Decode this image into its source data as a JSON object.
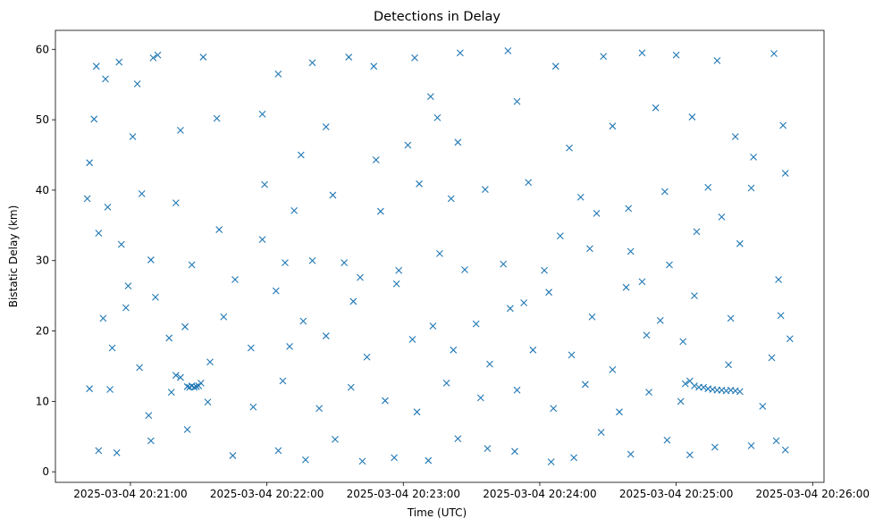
{
  "chart_data": {
    "type": "scatter",
    "title": "Detections in Delay",
    "xlabel": "Time (UTC)",
    "ylabel": "Bistatic Delay (km)",
    "marker": "x",
    "color": "#1f77b4",
    "grid": false,
    "xlim": [
      "2025-03-04 20:20:27",
      "2025-03-04 20:26:05"
    ],
    "ylim": [
      -1.5,
      62.7
    ],
    "xticks": [
      "2025-03-04 20:21:00",
      "2025-03-04 20:22:00",
      "2025-03-04 20:23:00",
      "2025-03-04 20:24:00",
      "2025-03-04 20:25:00",
      "2025-03-04 20:26:00"
    ],
    "yticks": [
      0,
      10,
      20,
      30,
      40,
      50,
      60
    ],
    "series": [
      {
        "points": [
          [
            "2025-03-04 20:20:42",
            43.9
          ],
          [
            "2025-03-04 20:20:45",
            57.6
          ],
          [
            "2025-03-04 20:20:49",
            55.8
          ],
          [
            "2025-03-04 20:20:55",
            58.2
          ],
          [
            "2025-03-04 20:21:03",
            55.1
          ],
          [
            "2025-03-04 20:21:10",
            58.8
          ],
          [
            "2025-03-04 20:21:12",
            59.2
          ],
          [
            "2025-03-04 20:21:32",
            58.9
          ],
          [
            "2025-03-04 20:21:58",
            50.8
          ],
          [
            "2025-03-04 20:22:05",
            56.5
          ],
          [
            "2025-03-04 20:22:20",
            58.1
          ],
          [
            "2025-03-04 20:22:36",
            58.9
          ],
          [
            "2025-03-04 20:22:47",
            57.6
          ],
          [
            "2025-03-04 20:23:05",
            58.8
          ],
          [
            "2025-03-04 20:23:25",
            59.5
          ],
          [
            "2025-03-04 20:23:46",
            59.8
          ],
          [
            "2025-03-04 20:24:07",
            57.6
          ],
          [
            "2025-03-04 20:24:28",
            59.0
          ],
          [
            "2025-03-04 20:24:45",
            59.5
          ],
          [
            "2025-03-04 20:25:00",
            59.2
          ],
          [
            "2025-03-04 20:25:18",
            58.4
          ],
          [
            "2025-03-04 20:25:43",
            59.4
          ],
          [
            "2025-03-04 20:20:44",
            50.1
          ],
          [
            "2025-03-04 20:21:01",
            47.6
          ],
          [
            "2025-03-04 20:21:22",
            48.5
          ],
          [
            "2025-03-04 20:21:38",
            50.2
          ],
          [
            "2025-03-04 20:22:26",
            49.0
          ],
          [
            "2025-03-04 20:22:48",
            44.3
          ],
          [
            "2025-03-04 20:23:02",
            46.4
          ],
          [
            "2025-03-04 20:23:15",
            50.3
          ],
          [
            "2025-03-04 20:23:24",
            46.8
          ],
          [
            "2025-03-04 20:23:50",
            52.6
          ],
          [
            "2025-03-04 20:24:13",
            46.0
          ],
          [
            "2025-03-04 20:24:32",
            49.1
          ],
          [
            "2025-03-04 20:24:51",
            51.7
          ],
          [
            "2025-03-04 20:25:07",
            50.4
          ],
          [
            "2025-03-04 20:25:26",
            47.6
          ],
          [
            "2025-03-04 20:25:47",
            49.2
          ],
          [
            "2025-03-04 20:25:34",
            44.7
          ],
          [
            "2025-03-04 20:20:41",
            38.8
          ],
          [
            "2025-03-04 20:20:50",
            37.6
          ],
          [
            "2025-03-04 20:21:05",
            39.5
          ],
          [
            "2025-03-04 20:21:20",
            38.2
          ],
          [
            "2025-03-04 20:21:39",
            34.4
          ],
          [
            "2025-03-04 20:21:59",
            40.8
          ],
          [
            "2025-03-04 20:22:12",
            37.1
          ],
          [
            "2025-03-04 20:22:29",
            39.3
          ],
          [
            "2025-03-04 20:22:50",
            37.0
          ],
          [
            "2025-03-04 20:23:07",
            40.9
          ],
          [
            "2025-03-04 20:23:21",
            38.8
          ],
          [
            "2025-03-04 20:23:36",
            40.1
          ],
          [
            "2025-03-04 20:23:55",
            41.1
          ],
          [
            "2025-03-04 20:24:18",
            39.0
          ],
          [
            "2025-03-04 20:24:39",
            37.4
          ],
          [
            "2025-03-04 20:24:55",
            39.8
          ],
          [
            "2025-03-04 20:25:14",
            40.4
          ],
          [
            "2025-03-04 20:25:33",
            40.3
          ],
          [
            "2025-03-04 20:25:48",
            42.4
          ],
          [
            "2025-03-04 20:20:46",
            33.9
          ],
          [
            "2025-03-04 20:20:56",
            32.3
          ],
          [
            "2025-03-04 20:21:09",
            30.1
          ],
          [
            "2025-03-04 20:21:27",
            29.4
          ],
          [
            "2025-03-04 20:21:46",
            27.3
          ],
          [
            "2025-03-04 20:22:08",
            29.7
          ],
          [
            "2025-03-04 20:22:20",
            30.0
          ],
          [
            "2025-03-04 20:22:34",
            29.7
          ],
          [
            "2025-03-04 20:22:58",
            28.6
          ],
          [
            "2025-03-04 20:23:16",
            31.0
          ],
          [
            "2025-03-04 20:23:27",
            28.7
          ],
          [
            "2025-03-04 20:23:44",
            29.5
          ],
          [
            "2025-03-04 20:24:02",
            28.6
          ],
          [
            "2025-03-04 20:24:22",
            31.7
          ],
          [
            "2025-03-04 20:24:40",
            31.3
          ],
          [
            "2025-03-04 20:24:57",
            29.4
          ],
          [
            "2025-03-04 20:25:09",
            34.1
          ],
          [
            "2025-03-04 20:25:28",
            32.4
          ],
          [
            "2025-03-04 20:25:45",
            27.3
          ],
          [
            "2025-03-04 20:20:48",
            21.8
          ],
          [
            "2025-03-04 20:20:58",
            23.3
          ],
          [
            "2025-03-04 20:21:11",
            24.8
          ],
          [
            "2025-03-04 20:21:24",
            20.6
          ],
          [
            "2025-03-04 20:21:41",
            22.0
          ],
          [
            "2025-03-04 20:22:04",
            25.7
          ],
          [
            "2025-03-04 20:22:16",
            21.4
          ],
          [
            "2025-03-04 20:22:38",
            24.2
          ],
          [
            "2025-03-04 20:22:57",
            26.7
          ],
          [
            "2025-03-04 20:23:13",
            20.7
          ],
          [
            "2025-03-04 20:23:32",
            21.0
          ],
          [
            "2025-03-04 20:23:47",
            23.2
          ],
          [
            "2025-03-04 20:24:04",
            25.5
          ],
          [
            "2025-03-04 20:24:23",
            22.0
          ],
          [
            "2025-03-04 20:24:38",
            26.2
          ],
          [
            "2025-03-04 20:24:53",
            21.5
          ],
          [
            "2025-03-04 20:25:08",
            25.0
          ],
          [
            "2025-03-04 20:25:24",
            21.8
          ],
          [
            "2025-03-04 20:25:46",
            22.2
          ],
          [
            "2025-03-04 20:20:52",
            17.6
          ],
          [
            "2025-03-04 20:21:04",
            14.8
          ],
          [
            "2025-03-04 20:21:17",
            19.0
          ],
          [
            "2025-03-04 20:21:35",
            15.6
          ],
          [
            "2025-03-04 20:21:53",
            17.6
          ],
          [
            "2025-03-04 20:22:10",
            17.8
          ],
          [
            "2025-03-04 20:22:26",
            19.3
          ],
          [
            "2025-03-04 20:22:44",
            16.3
          ],
          [
            "2025-03-04 20:23:04",
            18.8
          ],
          [
            "2025-03-04 20:23:22",
            17.3
          ],
          [
            "2025-03-04 20:23:38",
            15.3
          ],
          [
            "2025-03-04 20:23:57",
            17.3
          ],
          [
            "2025-03-04 20:24:14",
            16.6
          ],
          [
            "2025-03-04 20:24:32",
            14.5
          ],
          [
            "2025-03-04 20:24:47",
            19.4
          ],
          [
            "2025-03-04 20:25:03",
            18.5
          ],
          [
            "2025-03-04 20:25:23",
            15.2
          ],
          [
            "2025-03-04 20:25:42",
            16.2
          ],
          [
            "2025-03-04 20:25:50",
            18.9
          ],
          [
            "2025-03-04 20:20:42",
            11.8
          ],
          [
            "2025-03-04 20:20:51",
            11.7
          ],
          [
            "2025-03-04 20:21:08",
            8.0
          ],
          [
            "2025-03-04 20:21:18",
            11.3
          ],
          [
            "2025-03-04 20:21:34",
            9.9
          ],
          [
            "2025-03-04 20:21:54",
            9.2
          ],
          [
            "2025-03-04 20:22:07",
            12.9
          ],
          [
            "2025-03-04 20:22:23",
            9.0
          ],
          [
            "2025-03-04 20:22:37",
            12.0
          ],
          [
            "2025-03-04 20:22:52",
            10.1
          ],
          [
            "2025-03-04 20:23:06",
            8.5
          ],
          [
            "2025-03-04 20:23:19",
            12.6
          ],
          [
            "2025-03-04 20:23:34",
            10.5
          ],
          [
            "2025-03-04 20:23:50",
            11.6
          ],
          [
            "2025-03-04 20:24:06",
            9.0
          ],
          [
            "2025-03-04 20:24:20",
            12.4
          ],
          [
            "2025-03-04 20:24:35",
            8.5
          ],
          [
            "2025-03-04 20:24:48",
            11.3
          ],
          [
            "2025-03-04 20:25:02",
            10.0
          ],
          [
            "2025-03-04 20:25:38",
            9.3
          ],
          [
            "2025-03-04 20:20:46",
            3.0
          ],
          [
            "2025-03-04 20:20:54",
            2.7
          ],
          [
            "2025-03-04 20:21:09",
            4.4
          ],
          [
            "2025-03-04 20:21:25",
            6.0
          ],
          [
            "2025-03-04 20:21:45",
            2.3
          ],
          [
            "2025-03-04 20:22:05",
            3.0
          ],
          [
            "2025-03-04 20:22:17",
            1.7
          ],
          [
            "2025-03-04 20:22:30",
            4.6
          ],
          [
            "2025-03-04 20:22:42",
            1.5
          ],
          [
            "2025-03-04 20:22:56",
            2.0
          ],
          [
            "2025-03-04 20:23:11",
            1.6
          ],
          [
            "2025-03-04 20:23:24",
            4.7
          ],
          [
            "2025-03-04 20:23:37",
            3.3
          ],
          [
            "2025-03-04 20:23:49",
            2.9
          ],
          [
            "2025-03-04 20:24:05",
            1.4
          ],
          [
            "2025-03-04 20:24:15",
            2.0
          ],
          [
            "2025-03-04 20:24:27",
            5.6
          ],
          [
            "2025-03-04 20:24:40",
            2.5
          ],
          [
            "2025-03-04 20:24:56",
            4.5
          ],
          [
            "2025-03-04 20:25:06",
            2.4
          ],
          [
            "2025-03-04 20:25:17",
            3.5
          ],
          [
            "2025-03-04 20:25:33",
            3.7
          ],
          [
            "2025-03-04 20:25:44",
            4.4
          ],
          [
            "2025-03-04 20:25:48",
            3.1
          ],
          [
            "2025-03-04 20:21:25",
            12.1
          ],
          [
            "2025-03-04 20:21:26",
            12.0
          ],
          [
            "2025-03-04 20:21:27",
            12.2
          ],
          [
            "2025-03-04 20:21:28",
            12.0
          ],
          [
            "2025-03-04 20:21:29",
            12.1
          ],
          [
            "2025-03-04 20:21:30",
            12.2
          ],
          [
            "2025-03-04 20:21:31",
            12.6
          ],
          [
            "2025-03-04 20:21:20",
            13.7
          ],
          [
            "2025-03-04 20:21:22",
            13.4
          ],
          [
            "2025-03-04 20:25:04",
            12.5
          ],
          [
            "2025-03-04 20:25:06",
            12.9
          ],
          [
            "2025-03-04 20:25:08",
            12.2
          ],
          [
            "2025-03-04 20:25:10",
            12.0
          ],
          [
            "2025-03-04 20:25:12",
            12.0
          ],
          [
            "2025-03-04 20:25:14",
            11.8
          ],
          [
            "2025-03-04 20:25:16",
            11.7
          ],
          [
            "2025-03-04 20:25:18",
            11.6
          ],
          [
            "2025-03-04 20:25:20",
            11.6
          ],
          [
            "2025-03-04 20:25:22",
            11.5
          ],
          [
            "2025-03-04 20:25:24",
            11.6
          ],
          [
            "2025-03-04 20:25:26",
            11.5
          ],
          [
            "2025-03-04 20:25:28",
            11.4
          ],
          [
            "2025-03-04 20:23:12",
            53.3
          ],
          [
            "2025-03-04 20:24:25",
            36.7
          ],
          [
            "2025-03-04 20:22:15",
            45.0
          ],
          [
            "2025-03-04 20:21:58",
            33.0
          ],
          [
            "2025-03-04 20:24:09",
            33.5
          ],
          [
            "2025-03-04 20:25:20",
            36.2
          ],
          [
            "2025-03-04 20:20:59",
            26.4
          ],
          [
            "2025-03-04 20:22:41",
            27.6
          ],
          [
            "2025-03-04 20:23:53",
            24.0
          ],
          [
            "2025-03-04 20:24:45",
            27.0
          ]
        ]
      }
    ]
  }
}
